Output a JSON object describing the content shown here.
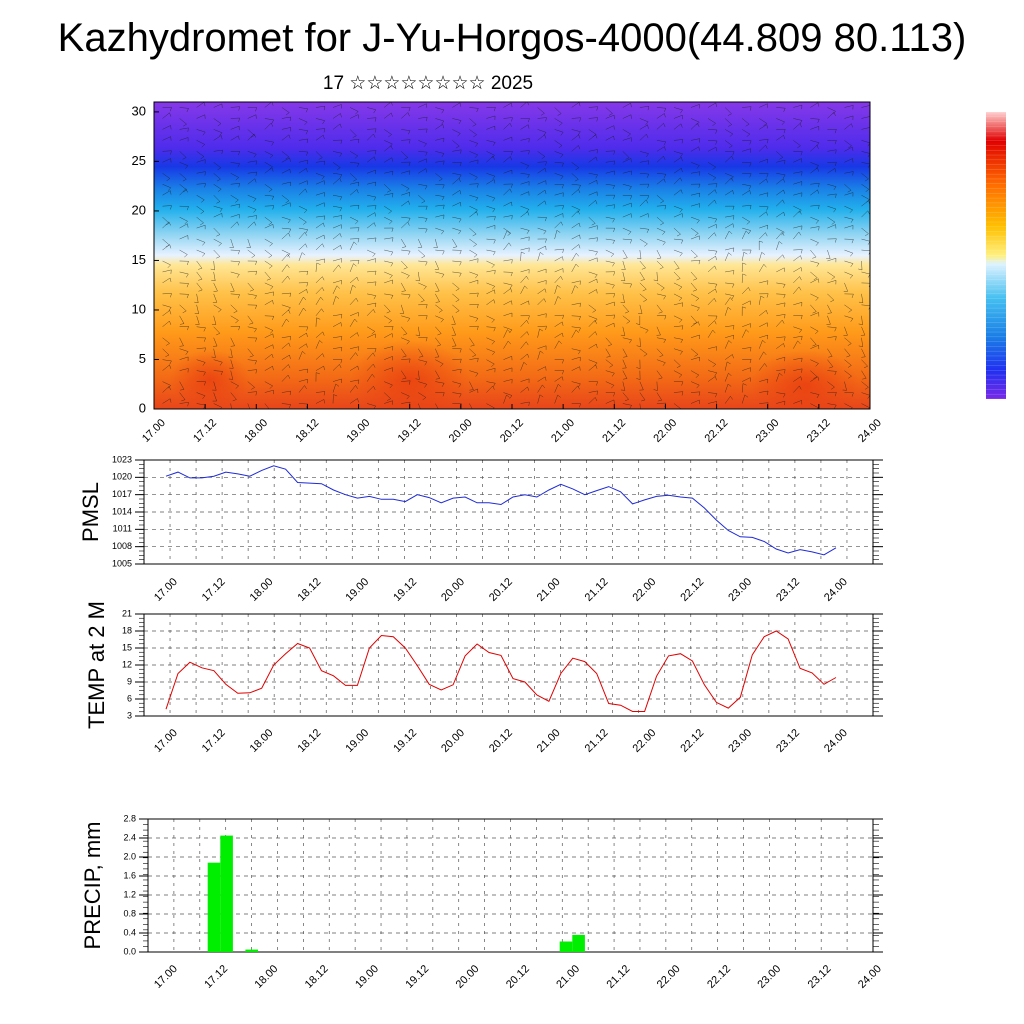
{
  "header": {
    "title": "Kazhydromet for J-Yu-Horgos-4000(44.809 80.113)",
    "subtitle": "17 ☆☆☆☆☆☆☆☆ 2025"
  },
  "colors": {
    "pmsl_line": "#1f2bd6",
    "temp_line": "#e00000",
    "precip_bar": "#00ee00",
    "colorbar": [
      "#ff9090",
      "#e00000",
      "#ff6a00",
      "#ffb000",
      "#ffe070",
      "#e8f4ff",
      "#59c4f0",
      "#1a8ee0",
      "#2040f0",
      "#4a1fe0",
      "#7a2ae8"
    ]
  },
  "chart_data": [
    {
      "type": "heatmap",
      "title": "",
      "x_tick_labels": [
        "17.00",
        "17.12",
        "18.00",
        "18.12",
        "19.00",
        "19.12",
        "20.00",
        "20.12",
        "21.00",
        "21.12",
        "22.00",
        "22.12",
        "23.00",
        "23.12",
        "24.00"
      ],
      "y_tick_labels": [
        "0",
        "5",
        "10",
        "15",
        "20",
        "25",
        "30"
      ],
      "ylim": [
        0,
        31
      ],
      "overlay": "wind barbs",
      "colorbar_orientation": "vertical-right"
    },
    {
      "type": "line",
      "ylabel": "PMSL",
      "ylim": [
        1005,
        1023
      ],
      "y_ticks": [
        1005,
        1008,
        1011,
        1014,
        1017,
        1020,
        1023
      ],
      "x_tick_labels": [
        "17.00",
        "17.12",
        "18.00",
        "18.12",
        "19.00",
        "19.12",
        "20.00",
        "20.12",
        "21.00",
        "21.12",
        "22.00",
        "22.12",
        "23.00",
        "23.12",
        "24.00"
      ],
      "series": [
        {
          "values": [
            1020.2,
            1020.9,
            1019.9,
            1019.9,
            1020.2,
            1020.9,
            1020.6,
            1020.2,
            1021.2,
            1022.0,
            1021.4,
            1019.1,
            1019.0,
            1018.9,
            1017.8,
            1017.0,
            1016.4,
            1016.7,
            1016.2,
            1016.2,
            1015.8,
            1017.0,
            1016.5,
            1015.6,
            1016.4,
            1016.6,
            1015.6,
            1015.6,
            1015.3,
            1016.6,
            1017.0,
            1016.6,
            1017.8,
            1018.8,
            1018.0,
            1017.0,
            1017.7,
            1018.4,
            1017.5,
            1015.4,
            1016.1,
            1016.7,
            1016.9,
            1016.6,
            1016.4,
            1014.7,
            1012.6,
            1010.8,
            1009.7,
            1009.6,
            1008.9,
            1007.6,
            1006.9,
            1007.5,
            1007.1,
            1006.6,
            1007.8
          ]
        }
      ],
      "grid": true
    },
    {
      "type": "line",
      "ylabel": "TEMP at 2 M",
      "ylim": [
        3,
        21
      ],
      "y_ticks": [
        3,
        6,
        9,
        12,
        15,
        18,
        21
      ],
      "x_tick_labels": [
        "17.00",
        "17.12",
        "18.00",
        "18.12",
        "19.00",
        "19.12",
        "20.00",
        "20.12",
        "21.00",
        "21.12",
        "22.00",
        "22.12",
        "23.00",
        "23.12",
        "24.00"
      ],
      "series": [
        {
          "values": [
            4.2,
            10.5,
            12.5,
            11.5,
            11.0,
            8.6,
            7.0,
            7.1,
            7.9,
            12.0,
            14.0,
            15.8,
            15.0,
            11.0,
            10.1,
            8.4,
            8.4,
            15.0,
            17.2,
            17.0,
            15.0,
            11.9,
            8.6,
            7.6,
            8.5,
            13.6,
            15.7,
            14.2,
            13.7,
            9.6,
            9.0,
            6.7,
            5.6,
            10.5,
            13.2,
            12.6,
            10.5,
            5.2,
            4.9,
            3.8,
            3.8,
            10.0,
            13.6,
            14.0,
            12.7,
            8.5,
            5.4,
            4.4,
            6.3,
            13.8,
            17.0,
            18.0,
            16.6,
            11.4,
            10.6,
            8.6,
            9.8
          ]
        }
      ],
      "grid": true
    },
    {
      "type": "bar",
      "ylabel": "PRECIP, mm",
      "ylim": [
        0,
        2.8
      ],
      "y_ticks": [
        "0.0",
        "0.4",
        "0.8",
        "1.2",
        "1.6",
        "2.0",
        "2.4",
        "2.8"
      ],
      "x_tick_labels": [
        "17.00",
        "17.12",
        "18.00",
        "18.12",
        "19.00",
        "19.12",
        "20.00",
        "20.12",
        "21.00",
        "21.12",
        "22.00",
        "22.12",
        "23.00",
        "23.12",
        "24.00"
      ],
      "bars": [
        {
          "hour": 9,
          "value": 1.88
        },
        {
          "hour": 12,
          "value": 2.45
        },
        {
          "hour": 18,
          "value": 0.05
        },
        {
          "hour": 93,
          "value": 0.22
        },
        {
          "hour": 96,
          "value": 0.36
        }
      ],
      "grid": true
    }
  ]
}
